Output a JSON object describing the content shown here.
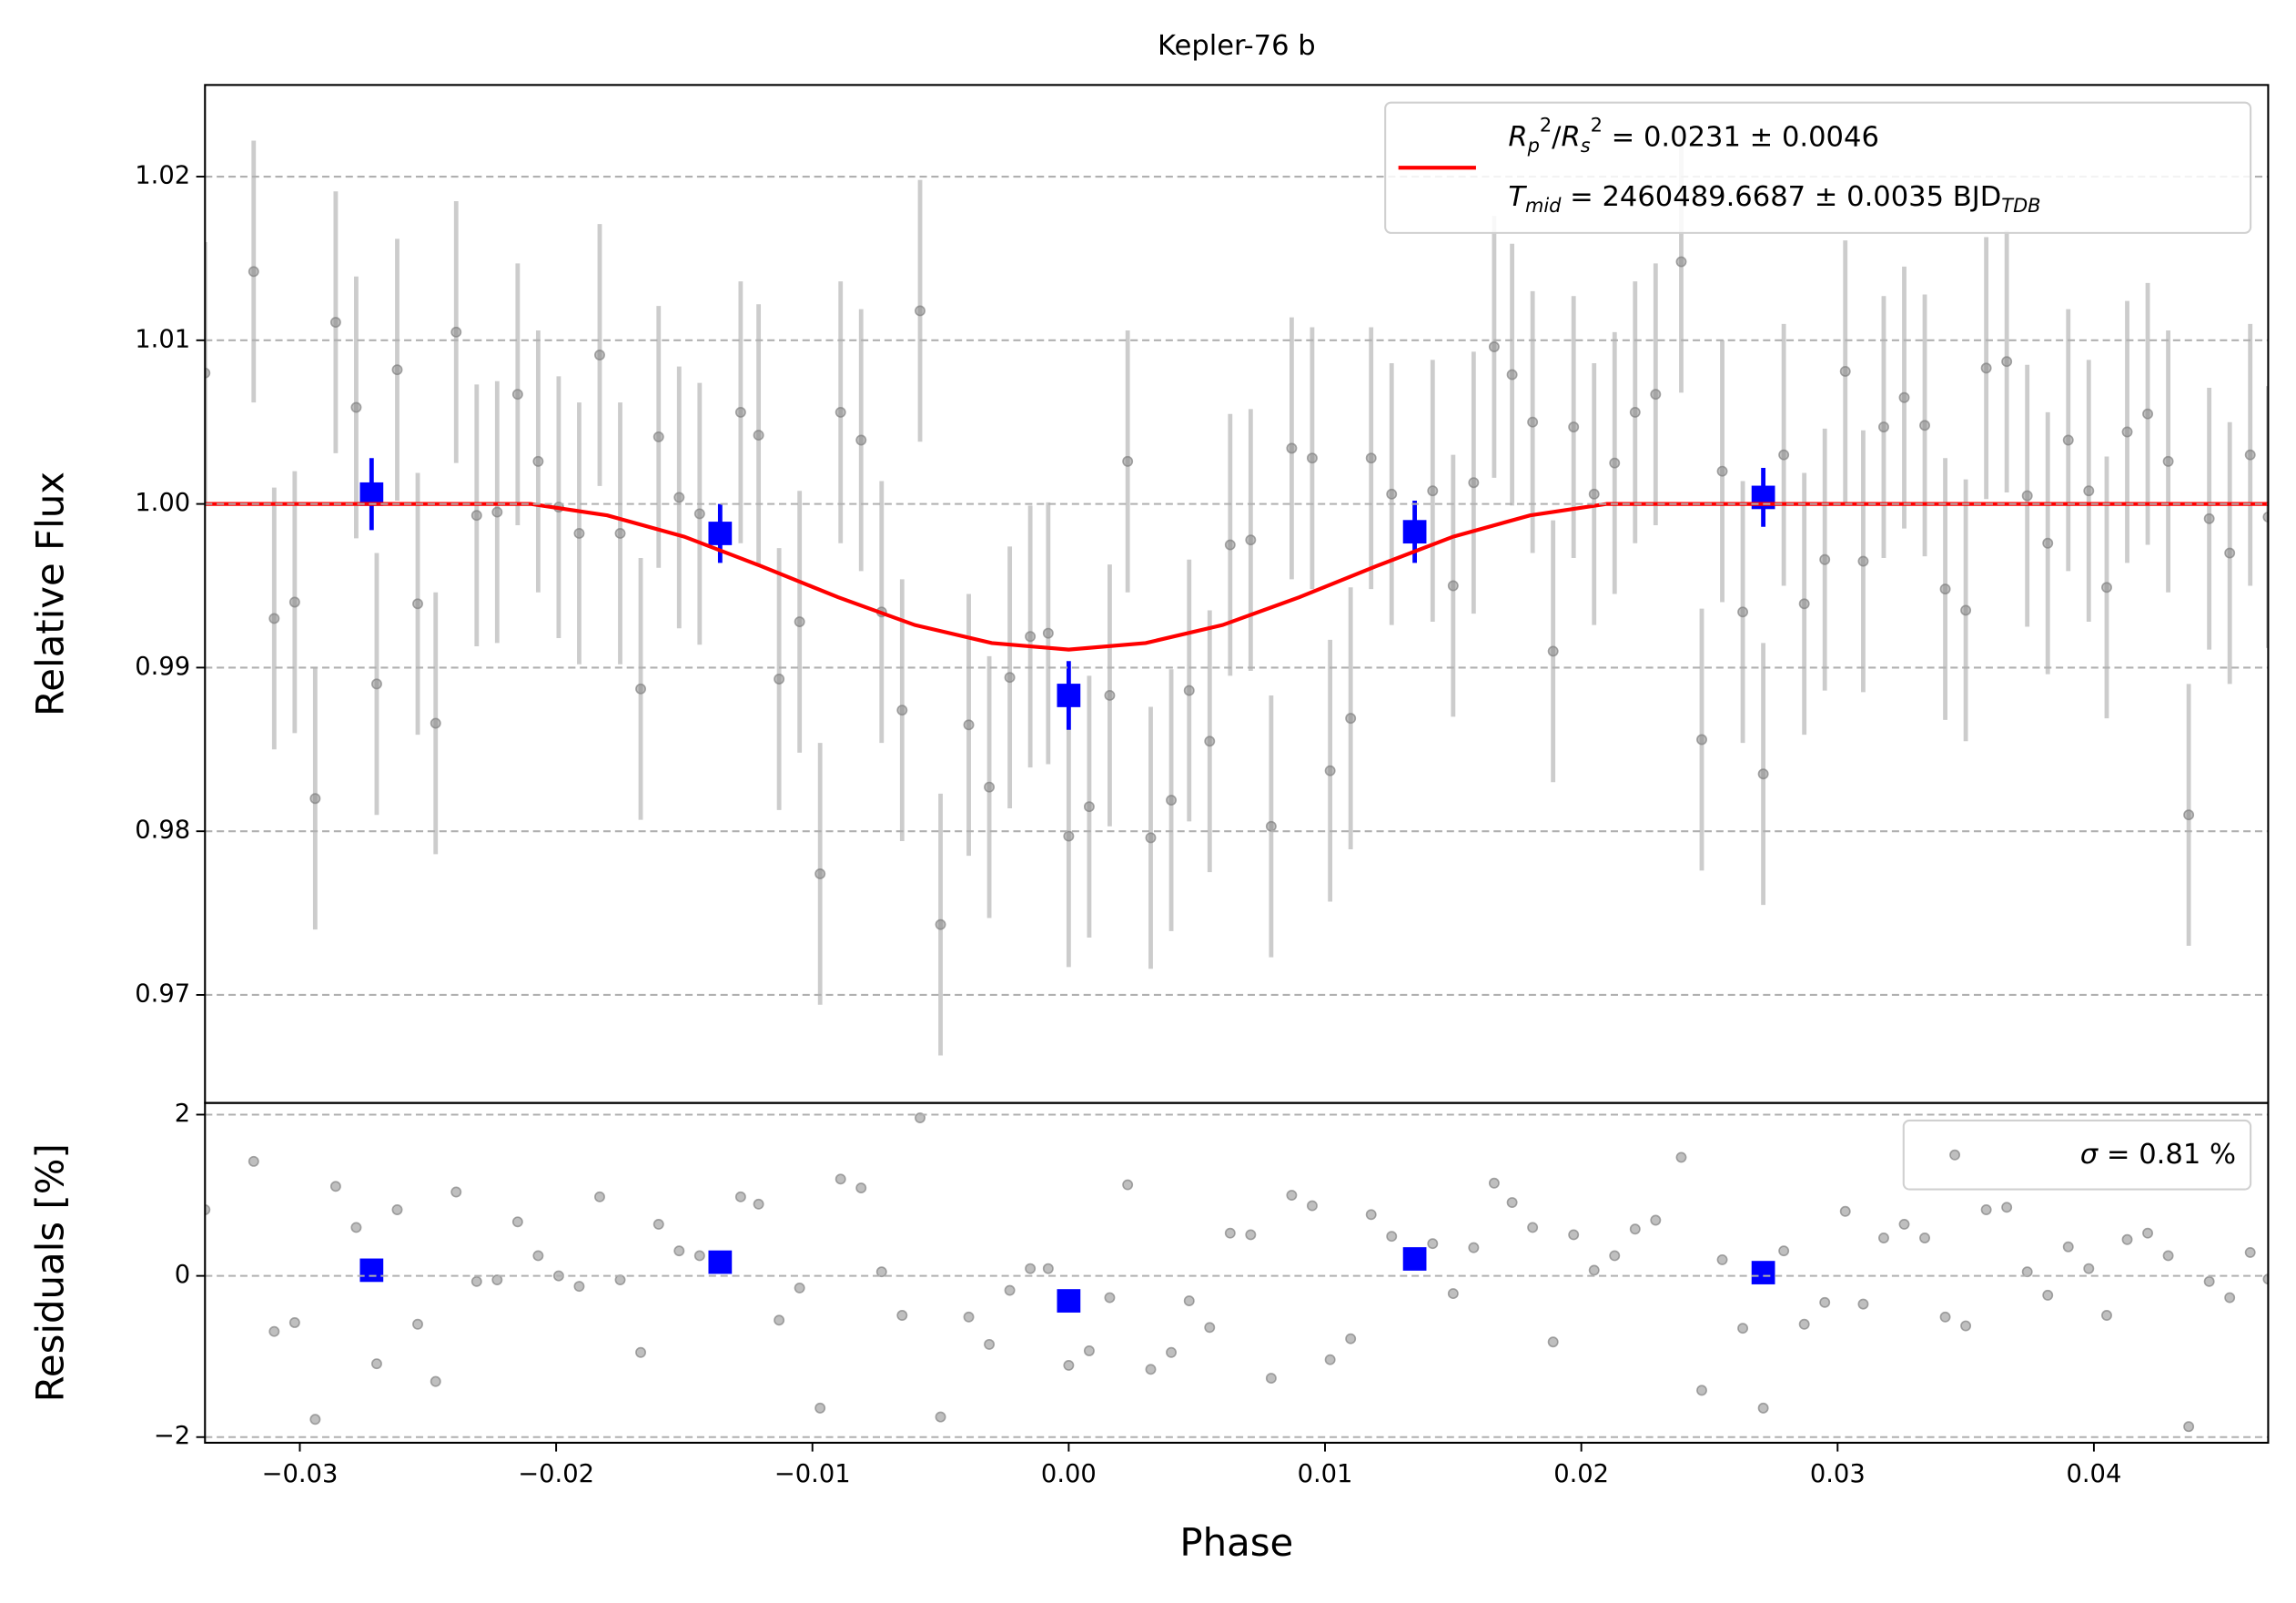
{
  "chart_data": [
    {
      "type": "scatter",
      "title": "Kepler-76 b",
      "ylabel": "Relative Flux",
      "xlim": [
        -0.0337,
        0.0468
      ],
      "ylim": [
        0.9634,
        1.0256
      ],
      "yticks": [
        0.97,
        0.98,
        0.99,
        {
          "value": 1,
          "label": "1.00"
        },
        1.01,
        1.02
      ],
      "grid": true,
      "legend_position": "upper right",
      "series": [
        {
          "color": "#808080",
          "yerr": 0.008,
          "x": [
            -0.0337,
            -0.0318,
            -0.031,
            -0.0302,
            -0.0294,
            -0.0286,
            -0.0278,
            -0.027,
            -0.0262,
            -0.0254,
            -0.0247,
            -0.0239,
            -0.0231,
            -0.0223,
            -0.0215,
            -0.0207,
            -0.0199,
            -0.0191,
            -0.0183,
            -0.0175,
            -0.0167,
            -0.016,
            -0.0152,
            -0.0144,
            -0.0128,
            -0.0121,
            -0.0113,
            -0.0105,
            -0.0097,
            -0.0089,
            -0.0081,
            -0.0073,
            -0.0065,
            -0.0058,
            -0.005,
            -0.0039,
            -0.0031,
            -0.0023,
            -0.0015,
            -0.0008,
            0,
            0.0008,
            0.0016,
            0.0023,
            0.0032,
            0.004,
            0.0047,
            0.0055,
            0.0063,
            0.0071,
            0.0079,
            0.0087,
            0.0095,
            0.0102,
            0.011,
            0.0118,
            0.0126,
            0.0142,
            0.015,
            0.0158,
            0.0166,
            0.0173,
            0.0181,
            0.0189,
            0.0197,
            0.0205,
            0.0213,
            0.0221,
            0.0229,
            0.0239,
            0.0247,
            0.0255,
            0.0263,
            0.0271,
            0.0279,
            0.0287,
            0.0295,
            0.0303,
            0.031,
            0.0318,
            0.0326,
            0.0334,
            0.0342,
            0.035,
            0.0358,
            0.0366,
            0.0374,
            0.0382,
            0.039,
            0.0398,
            0.0405,
            0.0413,
            0.0421,
            0.0429,
            0.0437,
            0.0445,
            0.0453,
            0.0461,
            0.0468
          ],
          "values": [
            1.008,
            1.0142,
            0.993,
            0.994,
            0.982,
            1.0111,
            1.0059,
            0.989,
            1.0082,
            0.9939,
            0.9866,
            1.0105,
            0.9993,
            0.9995,
            1.0067,
            1.0026,
            0.9998,
            0.9982,
            1.0091,
            0.9982,
            0.9887,
            1.0041,
            1.0004,
            0.9994,
            1.0056,
            1.0042,
            0.9893,
            0.9928,
            0.9774,
            1.0056,
            1.0039,
            0.9934,
            0.9874,
            1.0118,
            0.9743,
            0.9865,
            0.9827,
            0.9894,
            0.9919,
            0.9921,
            0.9797,
            0.9815,
            0.9883,
            1.0026,
            0.9796,
            0.9819,
            0.9886,
            0.9855,
            0.9975,
            0.9978,
            0.9803,
            1.0034,
            1.0028,
            0.9837,
            0.9869,
            1.0028,
            1.0006,
            1.0008,
            0.995,
            1.0013,
            1.0096,
            1.0079,
            1.005,
            0.991,
            1.0047,
            1.0006,
            1.0025,
            1.0056,
            1.0067,
            1.0148,
            0.9856,
            1.002,
            0.9934,
            0.9835,
            1.003,
            0.9939,
            0.9966,
            1.0081,
            0.9965,
            1.0047,
            1.0065,
            1.0048,
            0.9948,
            0.9935,
            1.0083,
            1.0087,
            1.0005,
            0.9976,
            1.0039,
            1.0008,
            0.9949,
            1.0044,
            1.0055,
            1.0026,
            0.981,
            0.9991,
            0.997,
            1.003,
            0.9992
          ]
        },
        {
          "color": "#0000ff",
          "marker": "square",
          "x": [
            -0.0272,
            -0.0136,
            0,
            0.0135,
            0.0271
          ],
          "values": [
            1.0006,
            0.9982,
            0.9883,
            0.9983,
            1.0004
          ],
          "yerr": [
            0.0022,
            0.0018,
            0.0021,
            0.0019,
            0.0018
          ]
        },
        {
          "type": "line",
          "color": "#ff0000",
          "x": [
            -0.0337,
            -0.021,
            -0.018,
            -0.015,
            -0.012,
            -0.009,
            -0.006,
            -0.003,
            0,
            0.003,
            0.006,
            0.009,
            0.012,
            0.015,
            0.018,
            0.021,
            0.0468
          ],
          "values": [
            1,
            1,
            0.9993,
            0.998,
            0.9962,
            0.9943,
            0.9926,
            0.9915,
            0.9911,
            0.9915,
            0.9926,
            0.9943,
            0.9962,
            0.998,
            0.9993,
            1,
            1
          ],
          "legend": [
            [
              {
                "text": "R",
                "style": "i"
              },
              {
                "text": "p",
                "style": "sub i"
              },
              {
                "text": "2",
                "style": "sup"
              },
              {
                "text": "/"
              },
              {
                "text": "R",
                "style": "i"
              },
              {
                "text": "s",
                "style": "sub i"
              },
              {
                "text": "2",
                "style": "sup"
              },
              {
                "text": " = 0.0231 ± 0.0046"
              }
            ],
            [
              {
                "text": "T",
                "style": "i"
              },
              {
                "text": "mid",
                "style": "sub i"
              },
              {
                "text": " = 2460489.6687 ± 0.0035 BJD"
              },
              {
                "text": "TDB",
                "style": "sub i"
              }
            ]
          ]
        }
      ]
    },
    {
      "type": "scatter",
      "xlabel": "Phase",
      "ylabel": "Residuals [%]",
      "xlim": [
        -0.0337,
        0.0468
      ],
      "ylim": [
        -2.07,
        2.145
      ],
      "xticks": [
        {
          "value": -0.03,
          "label": "−0.03"
        },
        {
          "value": -0.02,
          "label": "−0.02"
        },
        {
          "value": -0.01,
          "label": "−0.01"
        },
        {
          "value": 0,
          "label": "0.00"
        },
        0.01,
        0.02,
        0.03,
        0.04
      ],
      "yticks": [
        {
          "value": -2,
          "label": "−2"
        },
        0,
        2
      ],
      "grid": true,
      "legend_position": "upper right",
      "series": [
        {
          "color": "#808080",
          "legend": [
            [
              {
                "text": "σ",
                "style": "i"
              },
              {
                "text": " = 0.81 %"
              }
            ]
          ],
          "x": [
            -0.0337,
            -0.0318,
            -0.031,
            -0.0302,
            -0.0294,
            -0.0286,
            -0.0278,
            -0.027,
            -0.0262,
            -0.0254,
            -0.0247,
            -0.0239,
            -0.0231,
            -0.0223,
            -0.0215,
            -0.0207,
            -0.0199,
            -0.0191,
            -0.0183,
            -0.0175,
            -0.0167,
            -0.016,
            -0.0152,
            -0.0144,
            -0.0128,
            -0.0121,
            -0.0113,
            -0.0105,
            -0.0097,
            -0.0089,
            -0.0081,
            -0.0073,
            -0.0065,
            -0.0058,
            -0.005,
            -0.0039,
            -0.0031,
            -0.0023,
            -0.0015,
            -0.0008,
            0,
            0.0008,
            0.0016,
            0.0023,
            0.0032,
            0.004,
            0.0047,
            0.0055,
            0.0063,
            0.0071,
            0.0079,
            0.0087,
            0.0095,
            0.0102,
            0.011,
            0.0118,
            0.0126,
            0.0142,
            0.015,
            0.0158,
            0.0166,
            0.0173,
            0.0181,
            0.0189,
            0.0197,
            0.0205,
            0.0213,
            0.0221,
            0.0229,
            0.0239,
            0.0247,
            0.0255,
            0.0263,
            0.0271,
            0.0279,
            0.0287,
            0.0295,
            0.0303,
            0.031,
            0.0318,
            0.0326,
            0.0334,
            0.0342,
            0.035,
            0.0358,
            0.0366,
            0.0374,
            0.0382,
            0.039,
            0.0398,
            0.0405,
            0.0413,
            0.0421,
            0.0429,
            0.0437,
            0.0445,
            0.0453,
            0.0461,
            0.0468
          ],
          "values": [
            0.82,
            1.42,
            -0.69,
            -0.58,
            -1.78,
            1.11,
            0.6,
            -1.09,
            0.82,
            -0.6,
            -1.31,
            1.04,
            -0.07,
            -0.05,
            0.67,
            0.25,
            0,
            -0.13,
            0.98,
            -0.05,
            -0.95,
            0.64,
            0.31,
            0.25,
            0.98,
            0.89,
            -0.55,
            -0.15,
            -1.64,
            1.2,
            1.09,
            0.05,
            -0.49,
            1.96,
            -1.75,
            -0.51,
            -0.85,
            -0.18,
            0.09,
            0.09,
            -1.11,
            -0.93,
            -0.27,
            1.13,
            -1.16,
            -0.95,
            -0.31,
            -0.64,
            0.53,
            0.51,
            -1.27,
            1,
            0.87,
            -1.04,
            -0.78,
            0.76,
            0.49,
            0.4,
            -0.22,
            0.35,
            1.15,
            0.91,
            0.6,
            -0.82,
            0.51,
            0.07,
            0.25,
            0.58,
            0.69,
            1.47,
            -1.42,
            0.2,
            -0.65,
            -1.64,
            0.31,
            -0.6,
            -0.33,
            0.8,
            -0.35,
            0.47,
            0.64,
            0.47,
            -0.51,
            -0.62,
            0.82,
            0.85,
            0.05,
            -0.24,
            0.36,
            0.09,
            -0.49,
            0.45,
            0.53,
            0.25,
            -1.87,
            -0.07,
            -0.27,
            0.29,
            -0.04
          ]
        },
        {
          "color": "#0000ff",
          "marker": "square",
          "x": [
            -0.0272,
            -0.0136,
            0,
            0.0135,
            0.0271
          ],
          "values": [
            0.07,
            0.17,
            -0.31,
            0.21,
            0.04
          ]
        }
      ]
    }
  ]
}
